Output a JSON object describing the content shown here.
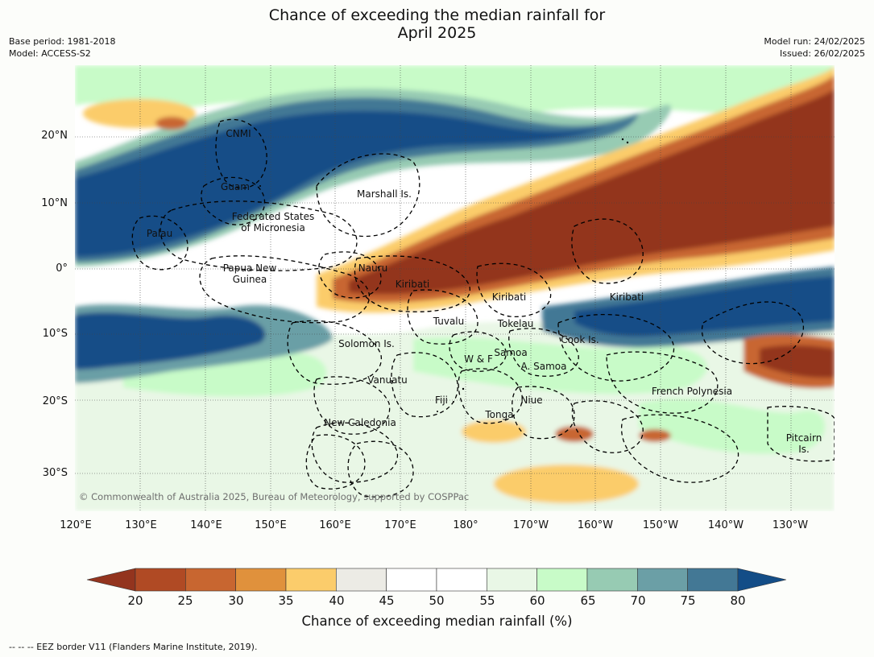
{
  "title_line1": "Chance of exceeding the median rainfall for",
  "title_line2": "April 2025",
  "meta": {
    "base_period": "Base period: 1981-2018",
    "model": "Model: ACCESS-S2",
    "model_run": "Model run: 24/02/2025",
    "issued": "Issued: 26/02/2025"
  },
  "lat_labels": [
    "20°N",
    "10°N",
    "0°",
    "10°S",
    "20°S",
    "30°S"
  ],
  "lon_labels": [
    "120°E",
    "130°E",
    "140°E",
    "150°E",
    "160°E",
    "170°E",
    "180°",
    "170°W",
    "160°W",
    "150°W",
    "140°W",
    "130°W"
  ],
  "regions": {
    "cnmi": "CNMI",
    "guam": "Guam",
    "marshall": "Marshall Is.",
    "fsm_1": "Federated States",
    "fsm_2": "of Micronesia",
    "palau": "Palau",
    "png_1": "Papua New",
    "png_2": "Guinea",
    "nauru": "Nauru",
    "kiribati_west": "Kiribati",
    "kiribati_central": "Kiribati",
    "kiribati_east": "Kiribati",
    "tuvalu": "Tuvalu",
    "tokelau": "Tokelau",
    "cook": "Cook Is.",
    "solomon": "Solomon Is.",
    "wf": "W & F",
    "samoa": "Samoa",
    "american_samoa": "A. Samoa",
    "vanuatu": "Vanuatu",
    "fiji": "Fiji",
    "niue": "Niue",
    "french_polynesia": "French Polynesia",
    "tonga": "Tonga",
    "new_caledonia": "New Caledonia",
    "pitcairn_1": "Pitcairn",
    "pitcairn_2": "Is."
  },
  "copyright": "© Commonwealth of Australia 2025, Bureau of Meteorology, supported by COSPPac",
  "colorbar": {
    "ticks": [
      "20",
      "25",
      "30",
      "35",
      "40",
      "45",
      "50",
      "55",
      "60",
      "65",
      "70",
      "75",
      "80"
    ],
    "colors": [
      "#93341e",
      "#b04a24",
      "#c86630",
      "#e0913c",
      "#fbcc6b",
      "#ecebe5",
      "#ffffff",
      "#ffffff",
      "#e9f7e6",
      "#c8fbc8",
      "#97cbb3",
      "#6b9fa6",
      "#437895",
      "#134d87"
    ],
    "title": "Chance of exceeding median rainfall (%)"
  },
  "footnote": "--  --  -- EEZ border V11 (Flanders Marine Institute, 2019)."
}
